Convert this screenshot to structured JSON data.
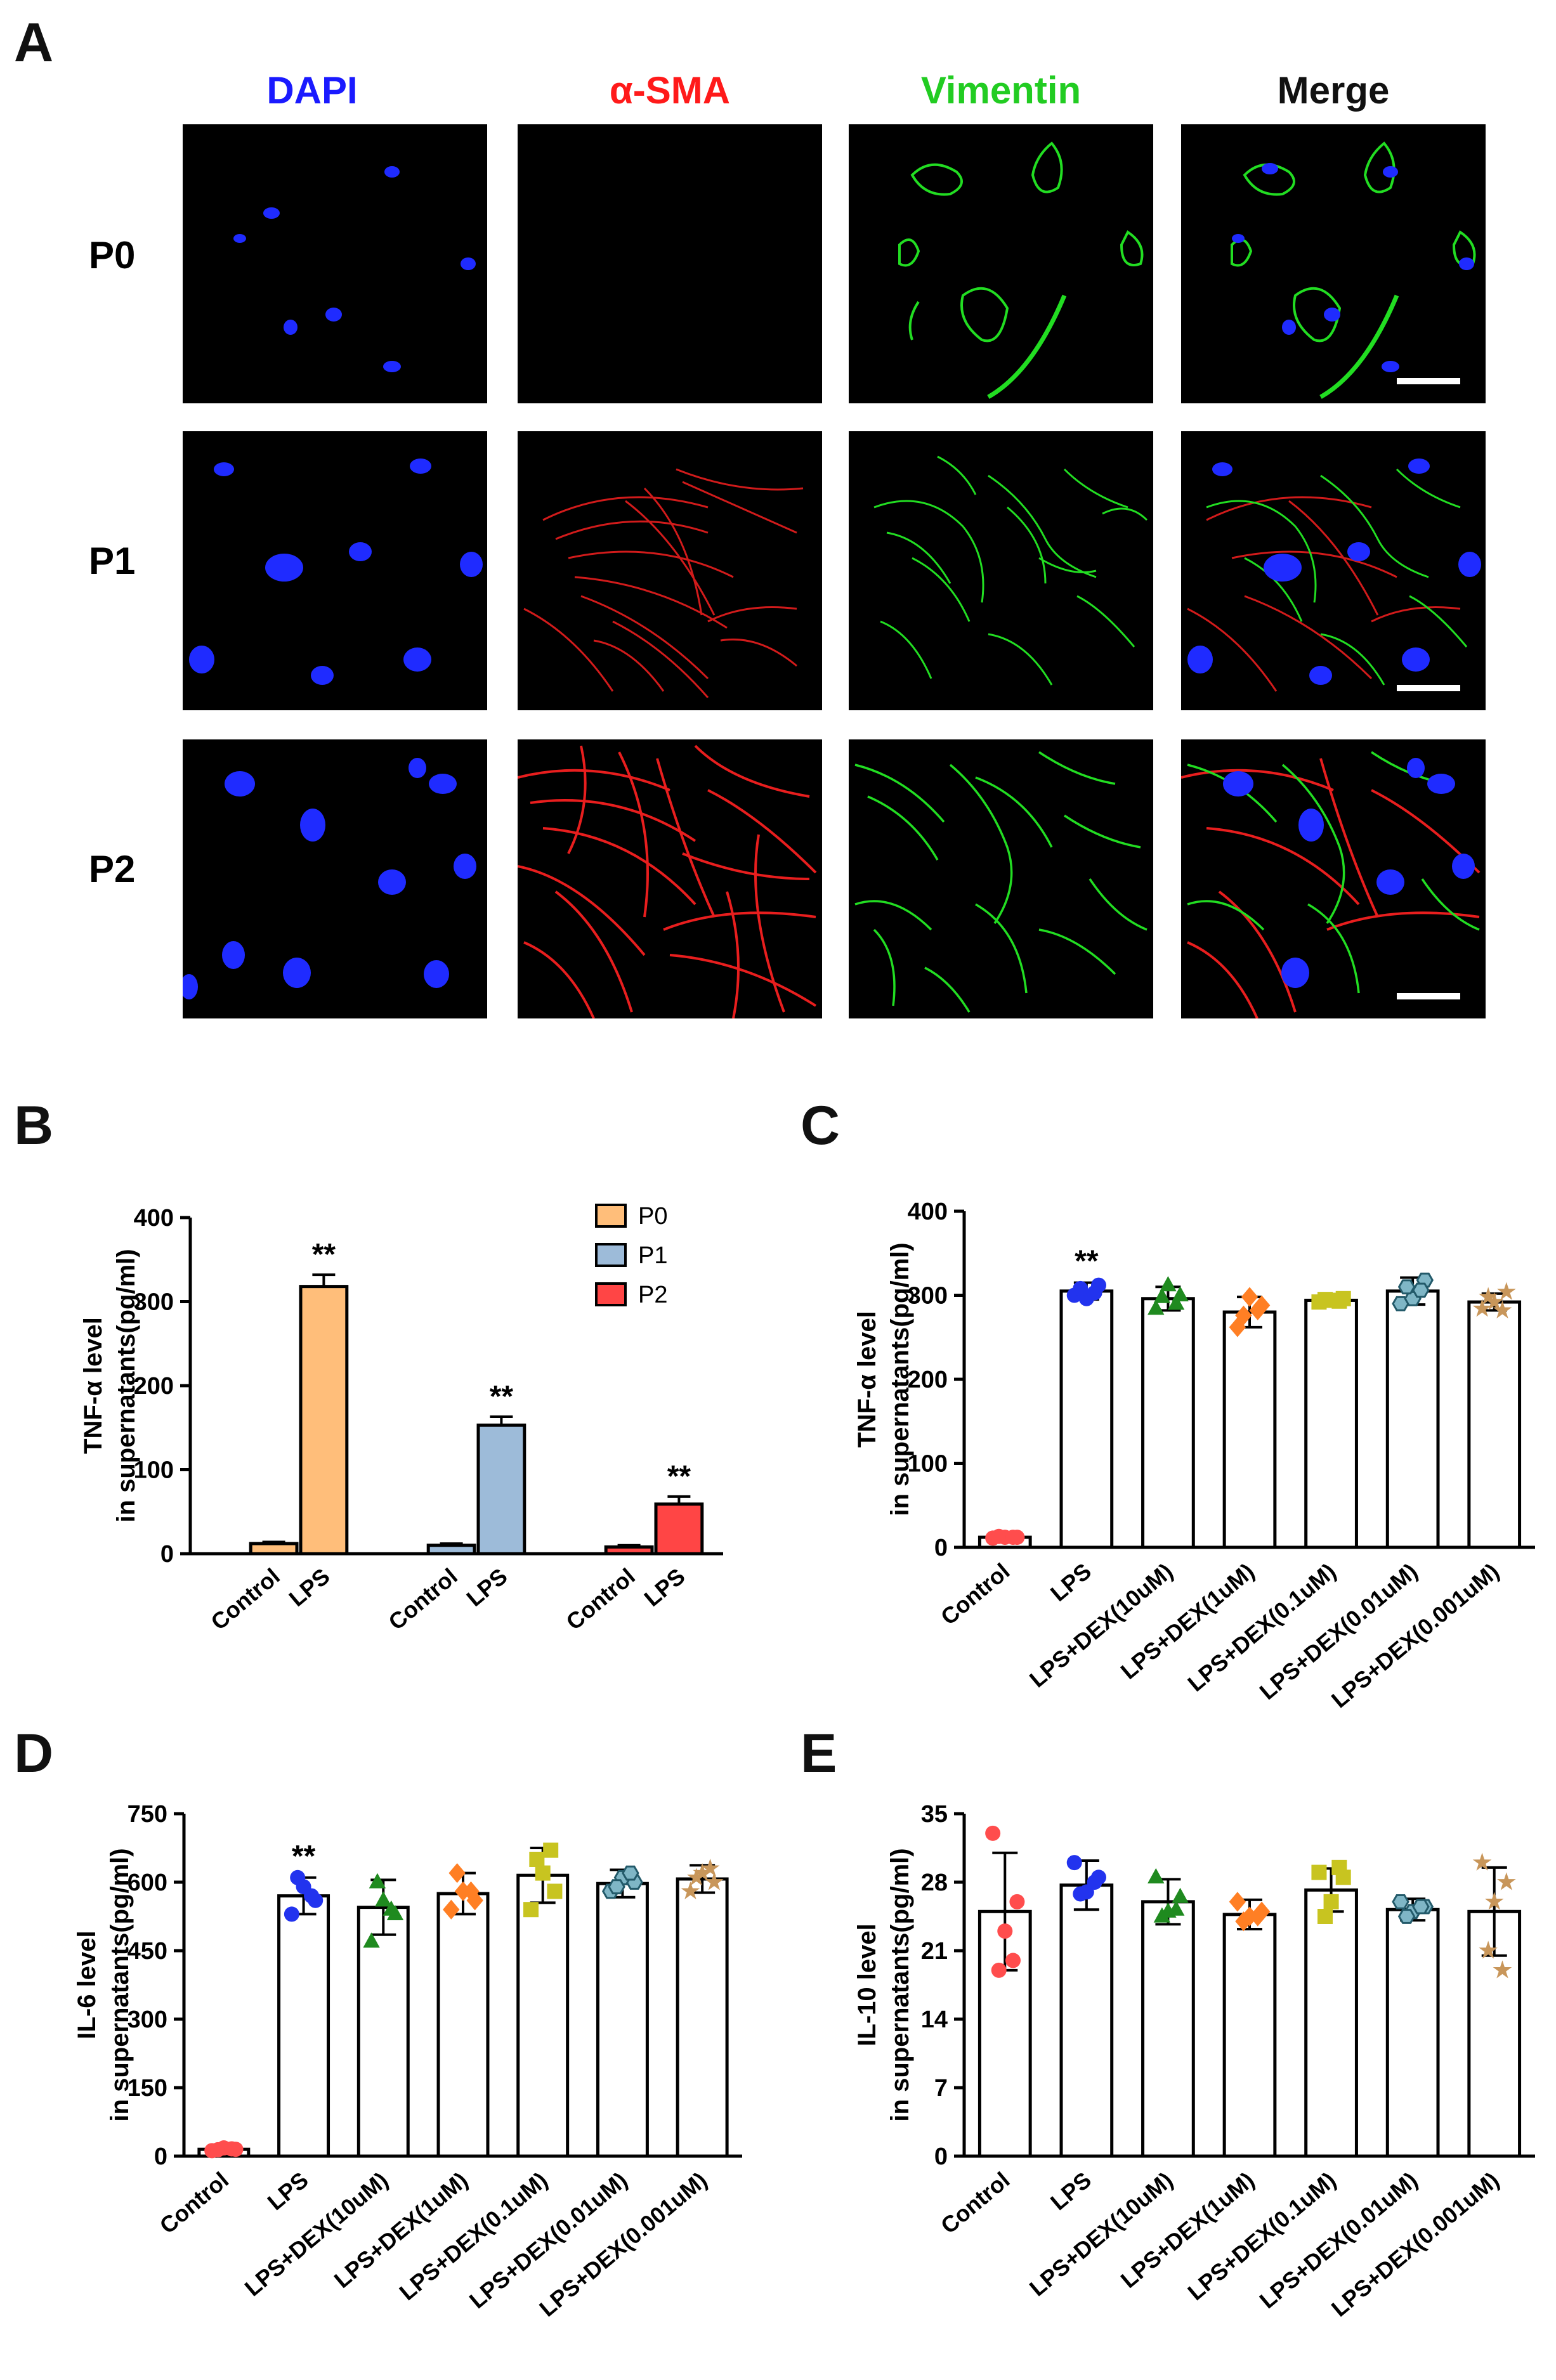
{
  "panel_a": {
    "letter": "A",
    "columns": [
      {
        "label": "DAPI",
        "color": "#1a1aff"
      },
      {
        "label": "α-SMA",
        "color": "#ff1a1a"
      },
      {
        "label": "Vimentin",
        "color": "#22cc22"
      },
      {
        "label": "Merge",
        "color": "#111111"
      }
    ],
    "rows": [
      "P0",
      "P1",
      "P2"
    ]
  },
  "chart_data": [
    {
      "panel": "B",
      "type": "bar",
      "ylabel_lines": [
        "TNF-α level",
        "in supernatants(pg/ml)"
      ],
      "ylim": [
        0,
        400
      ],
      "yticks": [
        0,
        100,
        200,
        300,
        400
      ],
      "legend": {
        "placement": "top-right",
        "entries": [
          {
            "label": "P0",
            "color": "#ffbe7a"
          },
          {
            "label": "P1",
            "color": "#9dbbd9"
          },
          {
            "label": "P2",
            "color": "#ff4545"
          }
        ]
      },
      "groups": [
        {
          "bars": [
            {
              "label": "Control",
              "value": 12,
              "err": 2,
              "color": "#ffbe7a"
            },
            {
              "label": "LPS",
              "value": 318,
              "err": 14,
              "color": "#ffbe7a",
              "sig": "**"
            }
          ]
        },
        {
          "bars": [
            {
              "label": "Control",
              "value": 10,
              "err": 2,
              "color": "#9dbbd9"
            },
            {
              "label": "LPS",
              "value": 153,
              "err": 10,
              "color": "#9dbbd9",
              "sig": "**"
            }
          ]
        },
        {
          "bars": [
            {
              "label": "Control",
              "value": 8,
              "err": 2,
              "color": "#ff4545"
            },
            {
              "label": "LPS",
              "value": 59,
              "err": 9,
              "color": "#ff4545",
              "sig": "**"
            }
          ]
        }
      ]
    },
    {
      "panel": "C",
      "type": "bar",
      "ylabel_lines": [
        "TNF-α level",
        "in supernatants(pg/ml)"
      ],
      "ylim": [
        0,
        400
      ],
      "yticks": [
        0,
        100,
        200,
        300,
        400
      ],
      "categories": [
        "Control",
        "LPS",
        "LPS+DEX(10uM)",
        "LPS+DEX(1uM)",
        "LPS+DEX(0.1uM)",
        "LPS+DEX(0.01uM)",
        "LPS+DEX(0.001uM)"
      ],
      "values": [
        12,
        305,
        296,
        280,
        294,
        305,
        292
      ],
      "errors": [
        2,
        10,
        14,
        18,
        5,
        16,
        10
      ],
      "point_colors": [
        "#ff4d4d",
        "#2233ee",
        "#1f8a1f",
        "#ff7f24",
        "#c8c420",
        "#235a6a",
        "#c8965a"
      ],
      "markers": [
        "circle",
        "circle",
        "triangle",
        "diamond",
        "square",
        "hexagon",
        "star"
      ],
      "points": [
        [
          11,
          12,
          12,
          13,
          12
        ],
        [
          300,
          312,
          296,
          308,
          303
        ],
        [
          284,
          300,
          312,
          298,
          290
        ],
        [
          262,
          288,
          298,
          276,
          282
        ],
        [
          292,
          296,
          294,
          295,
          293
        ],
        [
          290,
          318,
          296,
          310,
          306
        ],
        [
          284,
          304,
          292,
          298,
          282
        ]
      ],
      "significance": [
        "",
        "**",
        "",
        "",
        "",
        "",
        ""
      ]
    },
    {
      "panel": "D",
      "type": "bar",
      "ylabel_lines": [
        "IL-6 level",
        "in supernatants(pg/ml)"
      ],
      "ylim": [
        0,
        750
      ],
      "yticks": [
        0,
        150,
        300,
        450,
        600,
        750
      ],
      "categories": [
        "Control",
        "LPS",
        "LPS+DEX(10uM)",
        "LPS+DEX(1uM)",
        "LPS+DEX(0.1uM)",
        "LPS+DEX(0.01uM)",
        "LPS+DEX(0.001uM)"
      ],
      "values": [
        15,
        570,
        545,
        575,
        615,
        597,
        607
      ],
      "errors": [
        5,
        40,
        60,
        45,
        60,
        30,
        30
      ],
      "point_colors": [
        "#ff4d4d",
        "#2233ee",
        "#1f8a1f",
        "#ff7f24",
        "#c8c420",
        "#235a6a",
        "#c8965a"
      ],
      "markers": [
        "circle",
        "circle",
        "triangle",
        "diamond",
        "square",
        "hexagon",
        "star"
      ],
      "points": [
        [
          12,
          15,
          18,
          14,
          16
        ],
        [
          530,
          560,
          590,
          610,
          570
        ],
        [
          470,
          530,
          560,
          600,
          540
        ],
        [
          540,
          560,
          580,
          620,
          580
        ],
        [
          540,
          580,
          620,
          650,
          670
        ],
        [
          580,
          600,
          610,
          590,
          620
        ],
        [
          580,
          600,
          620,
          610,
          630
        ]
      ],
      "significance": [
        "",
        "**",
        "",
        "",
        "",
        "",
        ""
      ]
    },
    {
      "panel": "E",
      "type": "bar",
      "ylabel_lines": [
        "IL-10 level",
        "in supernatants(pg/ml)"
      ],
      "ylim": [
        0,
        35
      ],
      "yticks": [
        0,
        7,
        14,
        21,
        28,
        35
      ],
      "categories": [
        "Control",
        "LPS",
        "LPS+DEX(10uM)",
        "LPS+DEX(1uM)",
        "LPS+DEX(0.1uM)",
        "LPS+DEX(0.01uM)",
        "LPS+DEX(0.001uM)"
      ],
      "values": [
        25,
        27.7,
        26,
        24.7,
        27.2,
        25.2,
        25
      ],
      "errors": [
        6,
        2.5,
        2.3,
        1.5,
        2.2,
        1.1,
        4.5
      ],
      "point_colors": [
        "#ff4d4d",
        "#2233ee",
        "#1f8a1f",
        "#ff7f24",
        "#c8c420",
        "#235a6a",
        "#c8965a"
      ],
      "markers": [
        "circle",
        "circle",
        "triangle",
        "diamond",
        "square",
        "hexagon",
        "star"
      ],
      "points": [
        [
          33,
          26,
          23,
          19,
          20
        ],
        [
          30,
          28.5,
          27,
          26.8,
          28
        ],
        [
          28.5,
          26.5,
          25,
          24.5,
          25.2
        ],
        [
          26,
          25,
          24.5,
          24,
          24.5
        ],
        [
          29,
          28.5,
          26,
          24.5,
          29.5
        ],
        [
          26,
          25.5,
          25,
          24.5,
          25.5
        ],
        [
          30,
          28,
          26,
          21,
          19
        ]
      ],
      "significance": [
        "",
        "",
        "",
        "",
        "",
        "",
        ""
      ]
    }
  ]
}
